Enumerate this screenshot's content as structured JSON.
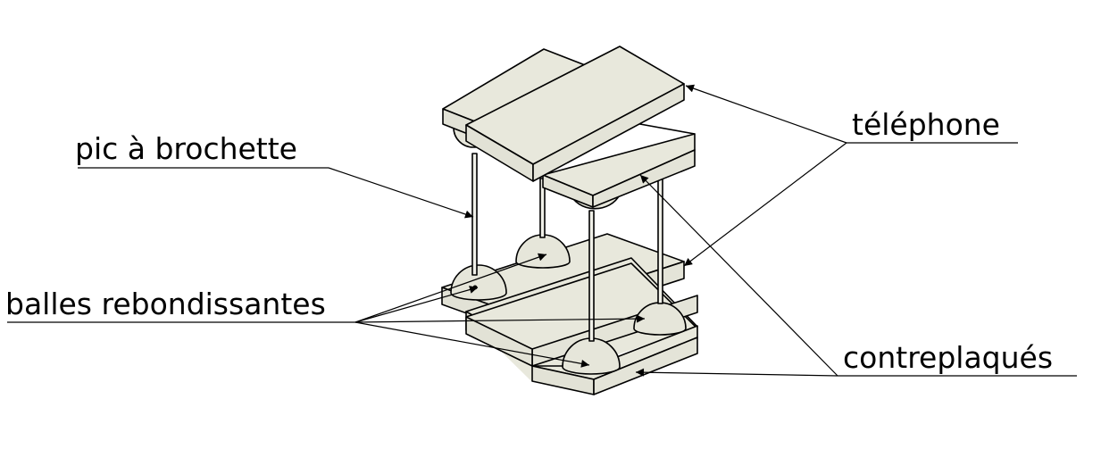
{
  "labels": {
    "skewer": "pic à brochette",
    "balls": "balles rebondissantes",
    "phone": "téléphone",
    "plywood": "contreplaqués"
  },
  "colors": {
    "board_face": "#e8e8dc",
    "board_side": "#e0e0d4",
    "ball": "#e6e6da",
    "line": "#000000"
  }
}
